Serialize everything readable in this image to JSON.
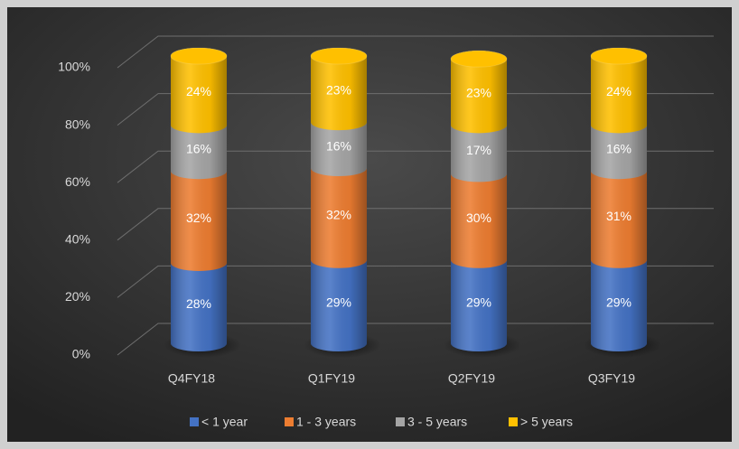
{
  "chart_data": {
    "type": "stacked_bar",
    "categories": [
      "Q4FY18",
      "Q1FY19",
      "Q2FY19",
      "Q3FY19"
    ],
    "series": [
      {
        "name": "< 1 year",
        "color": "#4472c4",
        "values": [
          28,
          29,
          29,
          29
        ],
        "value_labels": [
          "28%",
          "29%",
          "29%",
          "29%"
        ]
      },
      {
        "name": "1 - 3 years",
        "color": "#ed7d31",
        "values": [
          32,
          32,
          30,
          31
        ],
        "value_labels": [
          "32%",
          "32%",
          "30%",
          "31%"
        ]
      },
      {
        "name": "3 - 5 years",
        "color": "#a5a5a5",
        "values": [
          16,
          16,
          17,
          16
        ],
        "value_labels": [
          "16%",
          "16%",
          "17%",
          "16%"
        ]
      },
      {
        "name": "> 5 years",
        "color": "#ffc000",
        "values": [
          24,
          23,
          23,
          24
        ],
        "value_labels": [
          "24%",
          "23%",
          "23%",
          "24%"
        ]
      }
    ],
    "ylim": [
      0,
      100
    ],
    "yticks": [
      {
        "value": 0,
        "label": "0%"
      },
      {
        "value": 20,
        "label": "20%"
      },
      {
        "value": 40,
        "label": "40%"
      },
      {
        "value": 60,
        "label": "60%"
      },
      {
        "value": 80,
        "label": "80%"
      },
      {
        "value": 100,
        "label": "100%"
      }
    ],
    "grid": true,
    "legend": "bottom"
  }
}
